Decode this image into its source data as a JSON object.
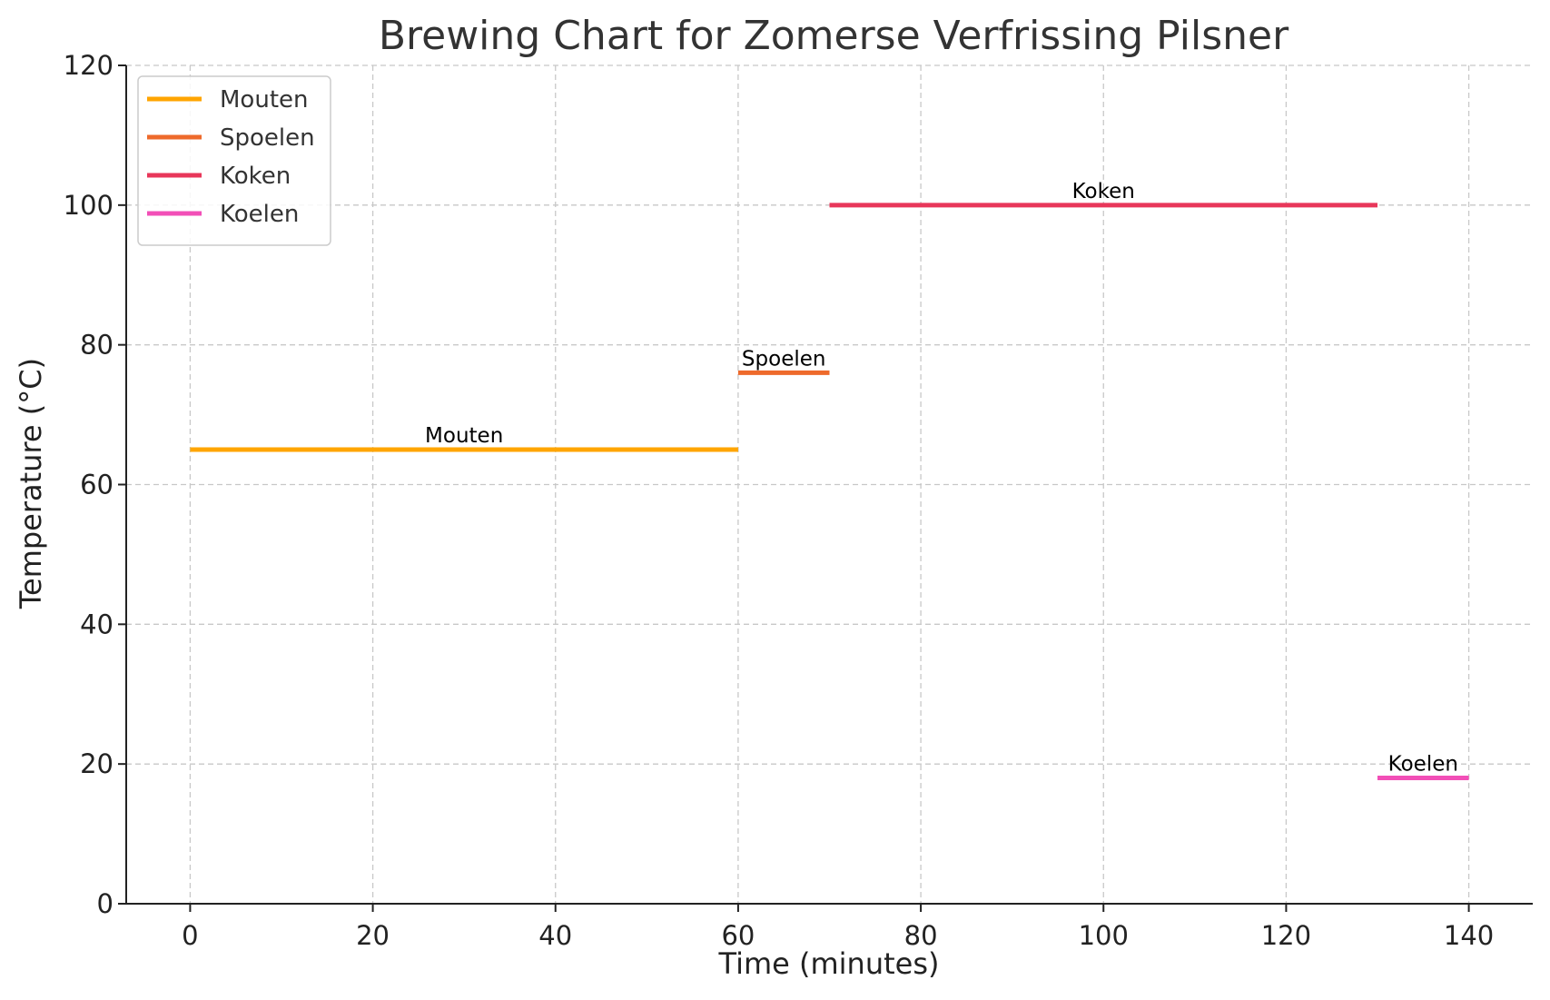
{
  "chart_data": {
    "type": "line",
    "title": "Brewing Chart for Zomerse Verfrissing Pilsner",
    "xlabel": "Time (minutes)",
    "ylabel": "Temperature (°C)",
    "xlim": [
      -7,
      147
    ],
    "ylim": [
      0,
      120
    ],
    "x_ticks": [
      0,
      20,
      40,
      60,
      80,
      100,
      120,
      140
    ],
    "y_ticks": [
      0,
      20,
      40,
      60,
      80,
      100,
      120
    ],
    "grid": true,
    "legend_position": "top-left",
    "series": [
      {
        "name": "Mouten",
        "color": "#FFA500",
        "x": [
          0,
          60
        ],
        "y": [
          65,
          65
        ],
        "label": "Mouten"
      },
      {
        "name": "Spoelen",
        "color": "#EE6A2B",
        "x": [
          60,
          70
        ],
        "y": [
          76,
          76
        ],
        "label": "Spoelen"
      },
      {
        "name": "Koken",
        "color": "#E8375A",
        "x": [
          70,
          130
        ],
        "y": [
          100,
          100
        ],
        "label": "Koken"
      },
      {
        "name": "Koelen",
        "color": "#F24FB7",
        "x": [
          130,
          140
        ],
        "y": [
          18,
          18
        ],
        "label": "Koelen"
      }
    ]
  }
}
